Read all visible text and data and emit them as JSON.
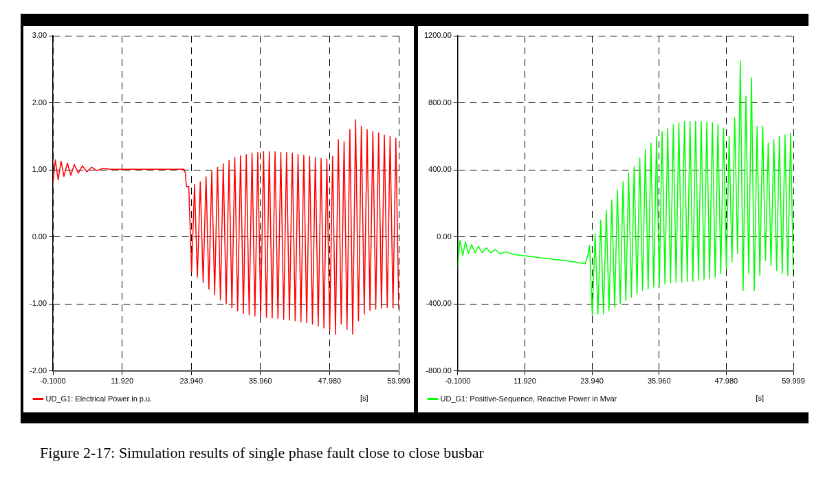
{
  "chart_data": [
    {
      "type": "line",
      "xlabel": "[s]",
      "legend": "bottom",
      "grid": true,
      "marker": "none",
      "line_style": "solid",
      "xlim": [
        -0.1,
        59.999
      ],
      "xticks": [
        {
          "value": -0.1,
          "label": "-0.1000"
        },
        {
          "value": 11.92,
          "label": "11.920"
        },
        {
          "value": 23.94,
          "label": "23.940"
        },
        {
          "value": 35.96,
          "label": "35.960"
        },
        {
          "value": 47.98,
          "label": "47.980"
        },
        59.999
      ],
      "ylim": [
        -2,
        3
      ],
      "yticks": [
        {
          "value": -2,
          "label": "-2.00"
        },
        {
          "value": -1,
          "label": "-1.00"
        },
        {
          "value": 0,
          "label": "0.00"
        },
        {
          "value": 1,
          "label": "1.00"
        },
        {
          "value": 2,
          "label": "2.00"
        },
        {
          "value": 3,
          "label": "3.00"
        }
      ],
      "annotations": [
        "Figure 2-17: Simulation results of single phase fault close to close busbar"
      ],
      "series": [
        {
          "name": "UD_G1: Electrical Power in p.u.",
          "color": "#ff0000",
          "x": [
            -0.1,
            0.3,
            0.8,
            1.3,
            1.8,
            2.4,
            3,
            3.6,
            4.3,
            5,
            5.8,
            6.6,
            7.5,
            8.5,
            10,
            15,
            22.7,
            22.9,
            23.1,
            23.5,
            24,
            24.5,
            25,
            25.5,
            26,
            26.5,
            27,
            27.5,
            28,
            28.5,
            29,
            29.5,
            30,
            30.5,
            31,
            31.5,
            32,
            32.5,
            33,
            33.5,
            34,
            34.5,
            35,
            35.5,
            36,
            36.5,
            37,
            37.5,
            38,
            38.5,
            39,
            39.5,
            40,
            40.5,
            41,
            41.5,
            42,
            42.5,
            43,
            43.5,
            44,
            44.5,
            45,
            45.5,
            46,
            46.5,
            47,
            47.5,
            48,
            48.5,
            49,
            49.5,
            50,
            50.5,
            51,
            51.5,
            52,
            52.5,
            53,
            53.5,
            54,
            54.5,
            55,
            55.5,
            56,
            56.5,
            57,
            57.5,
            58,
            58.5,
            59,
            59.5,
            59.999
          ],
          "values": [
            0.8,
            1.15,
            0.85,
            1.13,
            0.9,
            1.1,
            0.92,
            1.08,
            0.95,
            1.06,
            0.97,
            1.04,
            0.99,
            1.02,
            1.01,
            1.01,
            1.01,
            0.95,
            0.75,
            0.75,
            -0.52,
            0.78,
            -0.6,
            0.82,
            -0.68,
            0.9,
            -0.78,
            0.98,
            -0.86,
            1.04,
            -0.94,
            1.09,
            -1.0,
            1.14,
            -1.06,
            1.18,
            -1.1,
            1.21,
            -1.14,
            1.23,
            -1.16,
            1.25,
            -1.18,
            1.26,
            -1.19,
            1.27,
            -1.2,
            1.27,
            -1.21,
            1.27,
            -1.22,
            1.26,
            -1.23,
            1.26,
            -1.24,
            1.25,
            -1.25,
            1.23,
            -1.27,
            1.22,
            -1.28,
            1.2,
            -1.3,
            1.18,
            -1.33,
            1.17,
            -1.36,
            1.16,
            -1.4,
            1.2,
            -1.45,
            1.45,
            -1.3,
            1.42,
            -1.38,
            1.6,
            -1.45,
            1.75,
            -1.25,
            1.65,
            -1.15,
            1.6,
            -1.1,
            1.57,
            -1.08,
            1.55,
            -1.06,
            1.52,
            -1.05,
            1.5,
            -1.06,
            1.47,
            -1.08
          ]
        }
      ]
    },
    {
      "type": "line",
      "xlabel": "[s]",
      "legend": "bottom",
      "grid": true,
      "marker": "none",
      "line_style": "solid",
      "xlim": [
        -0.1,
        59.999
      ],
      "xticks": [
        {
          "value": -0.1,
          "label": "-0.1000"
        },
        {
          "value": 11.92,
          "label": "11.920"
        },
        {
          "value": 23.94,
          "label": "23.940"
        },
        {
          "value": 35.96,
          "label": "35.960"
        },
        {
          "value": 47.98,
          "label": "47.980"
        },
        59.999
      ],
      "ylim": [
        -800,
        1200
      ],
      "yticks": [
        {
          "value": -800,
          "label": "-800.00"
        },
        {
          "value": -400,
          "label": "-400.00"
        },
        {
          "value": 0,
          "label": "0.00"
        },
        {
          "value": 400,
          "label": "400.00"
        },
        {
          "value": 800,
          "label": "800.00"
        },
        {
          "value": 1200,
          "label": "1200.00"
        }
      ],
      "series": [
        {
          "name": "UD_G1: Positive-Sequence, Reactive Power in Mvar",
          "color": "#00ff00",
          "x": [
            -0.1,
            0.3,
            0.8,
            1.3,
            1.8,
            2.4,
            3,
            3.6,
            4.3,
            5,
            5.8,
            6.6,
            7.5,
            8.5,
            10,
            15,
            20,
            22.7,
            23.2,
            23.5,
            24,
            24.5,
            25,
            25.5,
            26,
            26.5,
            27,
            27.5,
            28,
            28.5,
            29,
            29.5,
            30,
            30.5,
            31,
            31.5,
            32,
            32.5,
            33,
            33.5,
            34,
            34.5,
            35,
            35.5,
            36,
            36.5,
            37,
            37.5,
            38,
            38.5,
            39,
            39.5,
            40,
            40.5,
            41,
            41.5,
            42,
            42.5,
            43,
            43.5,
            44,
            44.5,
            45,
            45.5,
            46,
            46.5,
            47,
            47.5,
            48,
            48.5,
            49,
            49.5,
            50,
            50.5,
            51,
            51.5,
            52,
            52.5,
            53,
            53.5,
            54,
            54.5,
            55,
            55.5,
            56,
            56.5,
            57,
            57.5,
            58,
            58.5,
            59,
            59.5,
            59.999
          ],
          "values": [
            -180,
            -20,
            -110,
            -30,
            -100,
            -45,
            -95,
            -55,
            -95,
            -65,
            -95,
            -75,
            -100,
            -90,
            -105,
            -125,
            -145,
            -160,
            -110,
            -50,
            -470,
            20,
            -460,
            100,
            -460,
            160,
            -440,
            220,
            -420,
            280,
            -400,
            330,
            -380,
            380,
            -360,
            420,
            -340,
            470,
            -320,
            520,
            -310,
            560,
            -300,
            600,
            -290,
            630,
            -280,
            650,
            -275,
            670,
            -270,
            680,
            -270,
            690,
            -265,
            690,
            -265,
            690,
            -260,
            690,
            -255,
            685,
            -250,
            680,
            -240,
            670,
            -220,
            650,
            -190,
            600,
            -150,
            710,
            -100,
            1050,
            -320,
            840,
            -220,
            950,
            -320,
            660,
            -230,
            660,
            -140,
            560,
            -170,
            580,
            -200,
            600,
            -220,
            610,
            -230,
            620,
            -240
          ]
        }
      ]
    }
  ]
}
